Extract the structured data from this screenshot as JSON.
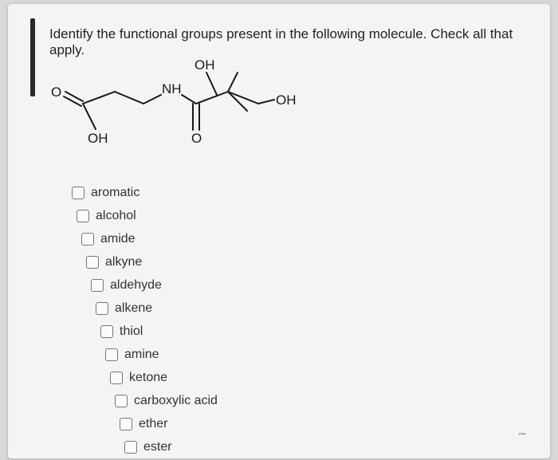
{
  "question": "Identify the functional groups present in the following molecule. Check all that apply.",
  "molecule": {
    "labels": {
      "oh_top": "OH",
      "oh_left": "OH",
      "oh_right": "OH",
      "nh": "NH",
      "o_db_left": "O",
      "o_db_mid": "O"
    },
    "stroke_color": "#1a1a1a",
    "stroke_width": 2
  },
  "options": [
    {
      "label": "aromatic",
      "checked": false
    },
    {
      "label": "alcohol",
      "checked": false
    },
    {
      "label": "amide",
      "checked": false
    },
    {
      "label": "alkyne",
      "checked": false
    },
    {
      "label": "aldehyde",
      "checked": false
    },
    {
      "label": "alkene",
      "checked": false
    },
    {
      "label": "thiol",
      "checked": false
    },
    {
      "label": "amine",
      "checked": false
    },
    {
      "label": "ketone",
      "checked": false
    },
    {
      "label": "carboxylic acid",
      "checked": false
    },
    {
      "label": "ether",
      "checked": false
    },
    {
      "label": "ester",
      "checked": false
    }
  ],
  "indent_step": 6,
  "colors": {
    "page_bg": "#d8d8d8",
    "card_bg": "#f4f4f4",
    "text": "#222",
    "checkbox_border": "#777"
  },
  "scribble": "ᵔᵔ"
}
